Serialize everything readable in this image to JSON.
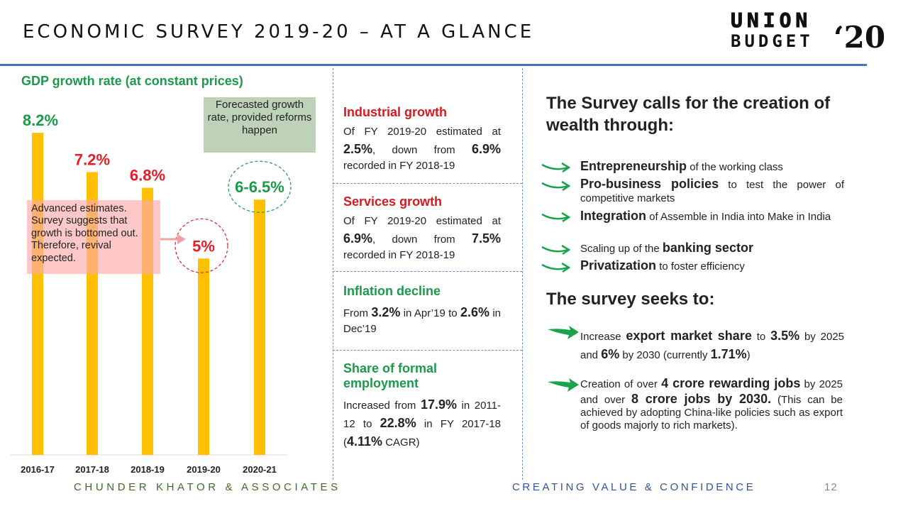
{
  "header": {
    "title": "ECONOMIC SURVEY 2019-20 – AT A GLANCE",
    "logo_line1": "UNION",
    "logo_line2": "BUDGET",
    "logo_year": "‘20"
  },
  "chart_data": {
    "type": "bar",
    "title": "GDP growth rate (at constant prices)",
    "categories": [
      "2016-17",
      "2017-18",
      "2018-19",
      "2019-20",
      "2020-21"
    ],
    "values": [
      8.2,
      7.2,
      6.8,
      5,
      6.5
    ],
    "value_labels": [
      "8.2%",
      "7.2%",
      "6.8%",
      "5%",
      "6-6.5%"
    ],
    "value_label_colors": [
      "#1a9a4a",
      "#e81c24",
      "#e81c24",
      "#e81c24",
      "#1a9a4a"
    ],
    "bar_color": "#ffc000",
    "ylim": [
      0,
      8.6
    ],
    "grid": false,
    "annotations": [
      {
        "text": "Advanced estimates. Survey suggests that growth is bottomed out. Therefore, revival expected.",
        "target": "2019-20"
      },
      {
        "text": "Forecasted growth rate, provided reforms happen",
        "target": "2020-21"
      }
    ]
  },
  "stats": [
    {
      "heading": "Industrial growth",
      "heading_color": "#d71920",
      "parts": [
        {
          "text": "Of FY 2019-20 estimated at "
        },
        {
          "text": "2.5%",
          "bold": true
        },
        {
          "text": ", down from "
        },
        {
          "text": "6.9%",
          "bold": true
        },
        {
          "text": " recorded in FY 2018-19"
        }
      ]
    },
    {
      "heading": "Services growth",
      "heading_color": "#d71920",
      "parts": [
        {
          "text": "Of FY 2019-20 estimated at "
        },
        {
          "text": "6.9%",
          "bold": true
        },
        {
          "text": ", down from "
        },
        {
          "text": "7.5%",
          "bold": true
        },
        {
          "text": " recorded in FY 2018-19"
        }
      ]
    },
    {
      "heading": "Inflation decline",
      "heading_color": "#1a9a4a",
      "parts": [
        {
          "text": "From "
        },
        {
          "text": "3.2%",
          "bold": true
        },
        {
          "text": " in Apr’19 to "
        },
        {
          "text": "2.6%",
          "bold": true
        },
        {
          "text": " in Dec’19"
        }
      ]
    },
    {
      "heading": "Share of formal employment",
      "heading_color": "#1a9a4a",
      "parts": [
        {
          "text": "Increased from "
        },
        {
          "text": "17.9%",
          "bold": true
        },
        {
          "text": " in 2011-12 to "
        },
        {
          "text": "22.8%",
          "bold": true
        },
        {
          "text": " in FY 2017-18 ("
        },
        {
          "text": "4.11%",
          "bold": true
        },
        {
          "text": " CAGR)"
        }
      ]
    }
  ],
  "wealth": {
    "heading": "The Survey calls for the creation of wealth through:",
    "items": [
      {
        "parts": [
          {
            "text": "Entrepreneurship",
            "bold": true
          },
          {
            "text": " of the working class"
          }
        ]
      },
      {
        "parts": [
          {
            "text": "Pro-business policies",
            "bold": true
          },
          {
            "text": " to test the power of competitive markets"
          }
        ]
      },
      {
        "parts": [
          {
            "text": "Integration",
            "bold": true
          },
          {
            "text": " of Assemble in India into Make in India"
          }
        ]
      },
      {
        "parts": [
          {
            "text": "Scaling up of the "
          },
          {
            "text": "banking sector",
            "bold": true
          }
        ]
      },
      {
        "parts": [
          {
            "text": "Privatization",
            "bold": true
          },
          {
            "text": " to foster efficiency"
          }
        ]
      }
    ]
  },
  "seeks": {
    "heading": "The survey seeks to:",
    "items": [
      {
        "parts": [
          {
            "text": "Increase "
          },
          {
            "text": "export market share",
            "bold": true
          },
          {
            "text": " to "
          },
          {
            "text": "3.5%",
            "bold": true
          },
          {
            "text": " by 2025 and "
          },
          {
            "text": "6%",
            "bold": true
          },
          {
            "text": " by 2030 (currently "
          },
          {
            "text": "1.71%",
            "bold": true
          },
          {
            "text": ")"
          }
        ]
      },
      {
        "parts": [
          {
            "text": "Creation of over "
          },
          {
            "text": "4 crore rewarding jobs",
            "bold": true
          },
          {
            "text": " by 2025 and over "
          },
          {
            "text": "8 crore jobs by 2030.",
            "bold": true
          },
          {
            "text": " (This can be achieved by adopting China-like policies such as export of goods majorly to rich markets)."
          }
        ]
      }
    ]
  },
  "footer": {
    "left": "CHUNDER KHATOR & ASSOCIATES",
    "right": "CREATING VALUE & CONFIDENCE",
    "page": "12"
  },
  "colors": {
    "accent_blue": "#4472c4",
    "heading_red": "#d71920",
    "heading_green": "#1a9a4a",
    "arrow_green": "#1aa34a"
  }
}
